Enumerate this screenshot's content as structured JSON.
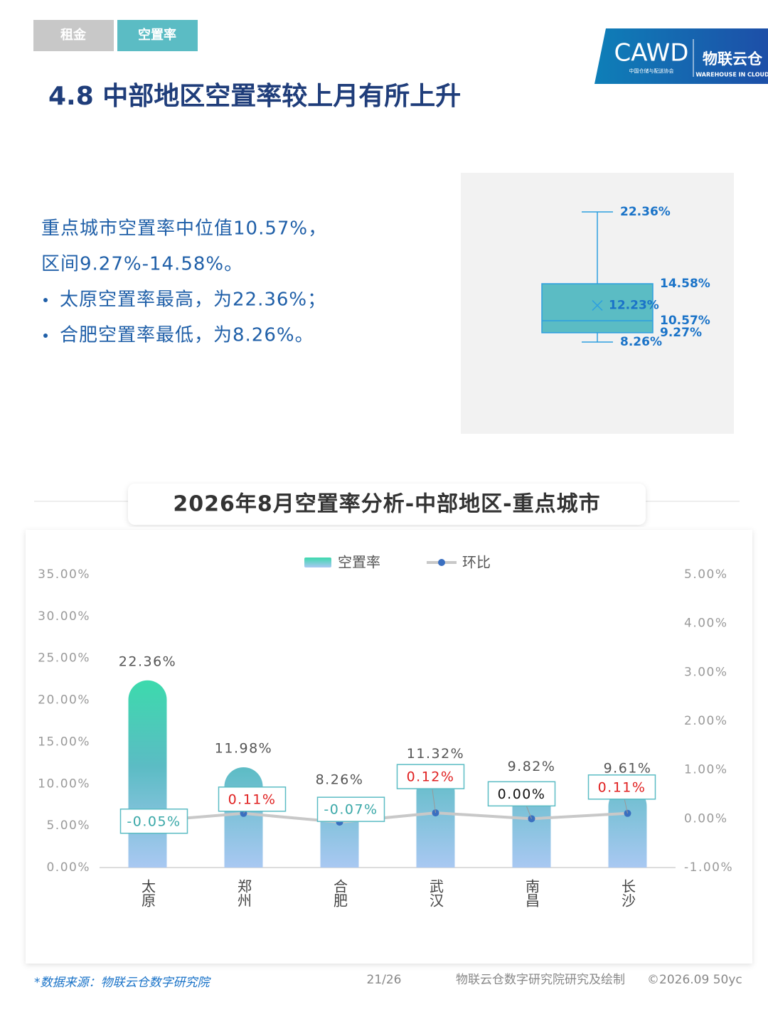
{
  "tabs": [
    "租金",
    "空置率"
  ],
  "logo": {
    "mark": "CAWD",
    "association": "中国仓储与配送协会",
    "brand": "物联云仓",
    "brand_en": "WAREHOUSE IN CLOUD"
  },
  "header": {
    "title": "4.8 中部地区空置率较上月有所上升"
  },
  "summary": {
    "lines": [
      "重点城市空置率中位值10.57%，",
      "区间9.27%-14.58%。"
    ],
    "bullets": [
      "太原空置率最高，为22.36%；",
      "合肥空置率最低，为8.26%。"
    ]
  },
  "box_chart": {
    "type": "box",
    "color": "#5bbcc4",
    "max": 22.36,
    "q3": 14.58,
    "mean": 12.23,
    "median": 10.57,
    "q1": 9.27,
    "min": 8.26,
    "value_labels": {
      "max": "22.36%",
      "q3": "14.58%",
      "mean": "12.23%",
      "median": "10.57%",
      "q1": "9.27%",
      "min": "8.26%"
    }
  },
  "chart_data": {
    "type": "bar-line",
    "title": "2026年8月空置率分析-中部地区-重点城市",
    "categories": [
      "太原",
      "郑州",
      "合肥",
      "武汉",
      "南昌",
      "长沙"
    ],
    "series": [
      {
        "name": "空置率",
        "type": "bar",
        "color": "#5bbcc4",
        "values": [
          22.36,
          11.98,
          8.26,
          11.32,
          9.82,
          9.61
        ],
        "value_labels": [
          "22.36%",
          "11.98%",
          "8.26%",
          "11.32%",
          "9.82%",
          "9.61%"
        ]
      },
      {
        "name": "环比",
        "type": "line",
        "axis": "y2",
        "color": "#c8c8c8",
        "marker_color": "#3a6fc0",
        "values": [
          -0.05,
          0.11,
          -0.07,
          0.12,
          0.0,
          0.11
        ],
        "value_labels": [
          "-0.05%",
          "0.11%",
          "-0.07%",
          "0.12%",
          "0.00%",
          "0.11%"
        ]
      }
    ],
    "ylim": [
      0,
      35
    ],
    "yticks": [
      {
        "value": 0,
        "label": "0.00%"
      },
      {
        "value": 5,
        "label": "5.00%"
      },
      {
        "value": 10,
        "label": "10.00%"
      },
      {
        "value": 15,
        "label": "15.00%"
      },
      {
        "value": 20,
        "label": "20.00%"
      },
      {
        "value": 25,
        "label": "25.00%"
      },
      {
        "value": 30,
        "label": "30.00%"
      },
      {
        "value": 35,
        "label": "35.00%"
      }
    ],
    "y2lim": [
      -1,
      5
    ],
    "y2ticks": [
      {
        "value": -1,
        "label": "-1.00%"
      },
      {
        "value": 0,
        "label": "0.00%"
      },
      {
        "value": 1,
        "label": "1.00%"
      },
      {
        "value": 2,
        "label": "2.00%"
      },
      {
        "value": 3,
        "label": "3.00%"
      },
      {
        "value": 4,
        "label": "4.00%"
      },
      {
        "value": 5,
        "label": "5.00%"
      }
    ],
    "grid": false,
    "legend": "top"
  },
  "footer": {
    "source": "*数据来源：物联云仓数字研究院",
    "page": "21/26",
    "credit": "物联云仓数字研究院研究及绘制",
    "copyright": "©2026.09 50yc"
  }
}
